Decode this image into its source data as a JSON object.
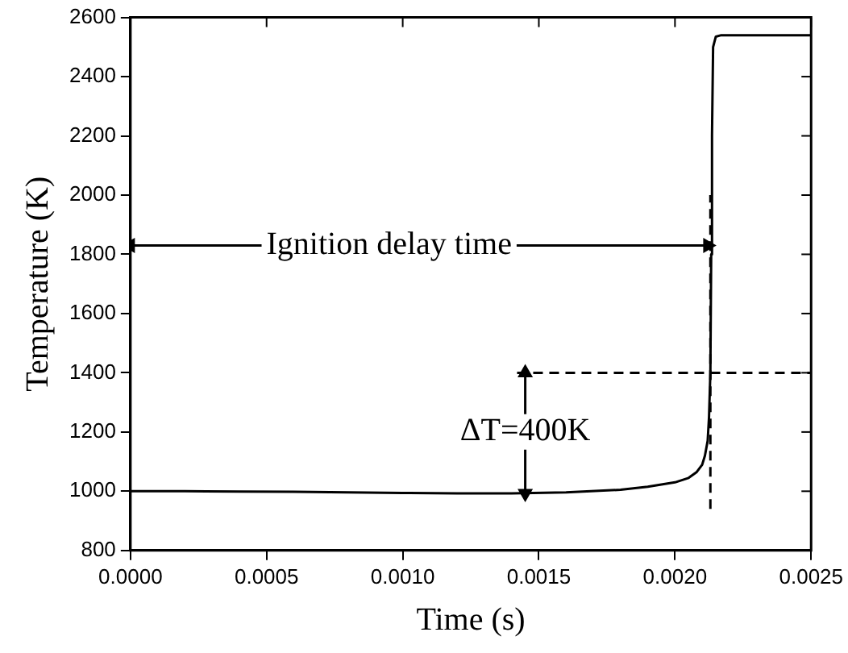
{
  "chart_data": {
    "type": "line",
    "xlabel": "Time (s)",
    "ylabel": "Temperature (K)",
    "xlim": [
      0,
      0.0025
    ],
    "ylim": [
      800,
      2600
    ],
    "xticks": [
      {
        "value": 0,
        "label": "0.0000"
      },
      {
        "value": 0.0005,
        "label": "0.0005"
      },
      {
        "value": 0.001,
        "label": "0.0010"
      },
      {
        "value": 0.0015,
        "label": "0.0015"
      },
      {
        "value": 0.002,
        "label": "0.0020"
      },
      {
        "value": 0.0025,
        "label": "0.0025"
      }
    ],
    "yticks": [
      800,
      1000,
      1200,
      1400,
      1600,
      1800,
      2000,
      2200,
      2400,
      2600
    ],
    "grid": false,
    "legend": false,
    "marker": "none",
    "line_style": "solid",
    "series": [
      {
        "color": "#000000",
        "x": [
          0,
          0.0002,
          0.0004,
          0.0006,
          0.0008,
          0.001,
          0.0012,
          0.0014,
          0.0016,
          0.0018,
          0.0019,
          0.002,
          0.00205,
          0.00208,
          0.0021,
          0.00211,
          0.00212,
          0.002125,
          0.00213,
          0.002133,
          0.002136,
          0.00214,
          0.00215,
          0.00217,
          0.0025
        ],
        "values": [
          1000,
          1000,
          999,
          998,
          996,
          994,
          993,
          993,
          996,
          1005,
          1015,
          1030,
          1045,
          1065,
          1090,
          1120,
          1170,
          1250,
          1400,
          1800,
          2200,
          2500,
          2535,
          2540,
          2540
        ]
      },
      {
        "color": "#000000",
        "line_style": "dashed",
        "x": [
          0.00142,
          0.0025
        ],
        "values": [
          1400,
          1400
        ]
      },
      {
        "color": "#000000",
        "line_style": "dashed",
        "x": [
          0.00213,
          0.00213
        ],
        "values": [
          940,
          2000
        ]
      },
      {
        "color": "#000000",
        "marker": "triangle",
        "x": [
          0,
          0.00212
        ],
        "values": [
          1830,
          1830
        ]
      },
      {
        "color": "#000000",
        "marker": "triangle",
        "x": [
          0.00145,
          0.00145
        ],
        "values": [
          993,
          1400
        ]
      }
    ],
    "annotations": [
      {
        "text": "Ignition delay time",
        "x": 0.00095,
        "y": 1830
      },
      {
        "text": "ΔT=400K",
        "x": 0.00145,
        "y": 1200
      }
    ]
  }
}
